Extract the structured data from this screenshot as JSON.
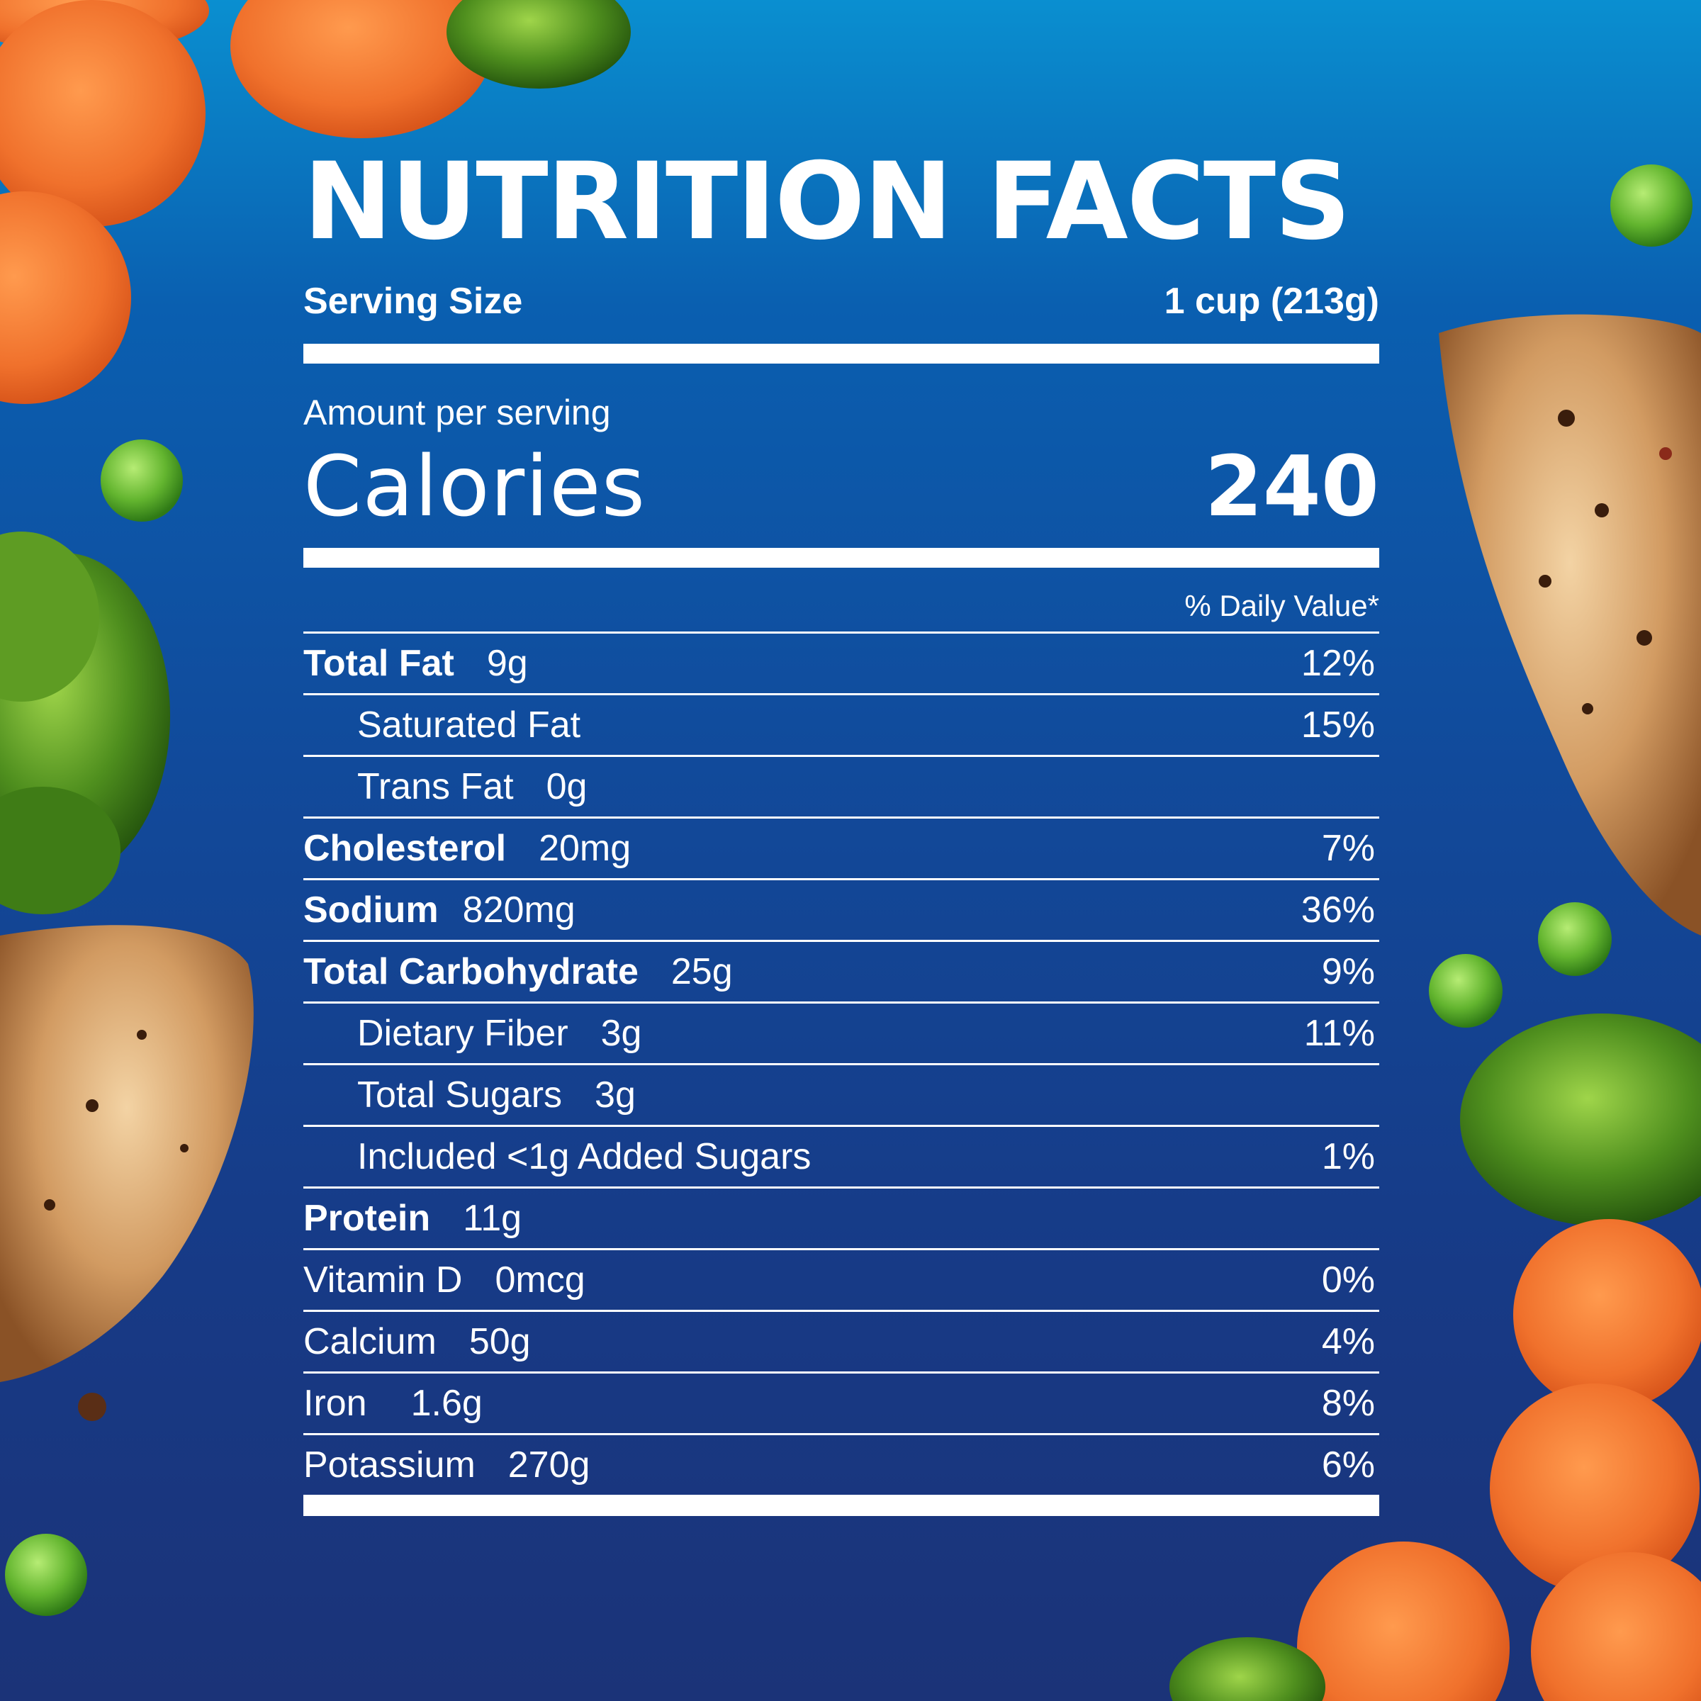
{
  "header": {
    "title": "NUTRITION FACTS"
  },
  "serving": {
    "label": "Serving Size",
    "value": "1 cup (213g)"
  },
  "amount_label": "Amount per serving",
  "calories": {
    "label": "Calories",
    "value": "240"
  },
  "daily_value_header": "% Daily Value*",
  "nutrients": [
    {
      "name": "Total Fat",
      "amount": "9g",
      "dv": "12%"
    },
    {
      "name": "Saturated Fat",
      "amount": "",
      "dv": "15%"
    },
    {
      "name": "Trans Fat",
      "amount": "0g",
      "dv": ""
    },
    {
      "name": "Cholesterol",
      "amount": "20mg",
      "dv": "7%"
    },
    {
      "name": "Sodium",
      "amount": "820mg",
      "dv": "36%"
    },
    {
      "name": "Total Carbohydrate",
      "amount": "25g",
      "dv": "9%"
    },
    {
      "name": "Dietary Fiber",
      "amount": "3g",
      "dv": "11%"
    },
    {
      "name": "Total Sugars",
      "amount": "3g",
      "dv": ""
    },
    {
      "name": "Included <1g Added Sugars",
      "amount": "",
      "dv": "1%"
    },
    {
      "name": "Protein",
      "amount": "11g",
      "dv": ""
    },
    {
      "name": "Vitamin D",
      "amount": "0mcg",
      "dv": "0%"
    },
    {
      "name": "Calcium",
      "amount": "50g",
      "dv": "4%"
    },
    {
      "name": "Iron",
      "amount": "1.6g",
      "dv": "8%"
    },
    {
      "name": "Potassium",
      "amount": "270g",
      "dv": "6%"
    }
  ],
  "colors": {
    "background_top": "#0a8fd0",
    "background_bottom": "#1b3378",
    "text": "#ffffff",
    "carrot": "#f0712c",
    "broccoli": "#4f8f1e",
    "pea": "#6cc03a",
    "chicken": "#c98a4f"
  }
}
